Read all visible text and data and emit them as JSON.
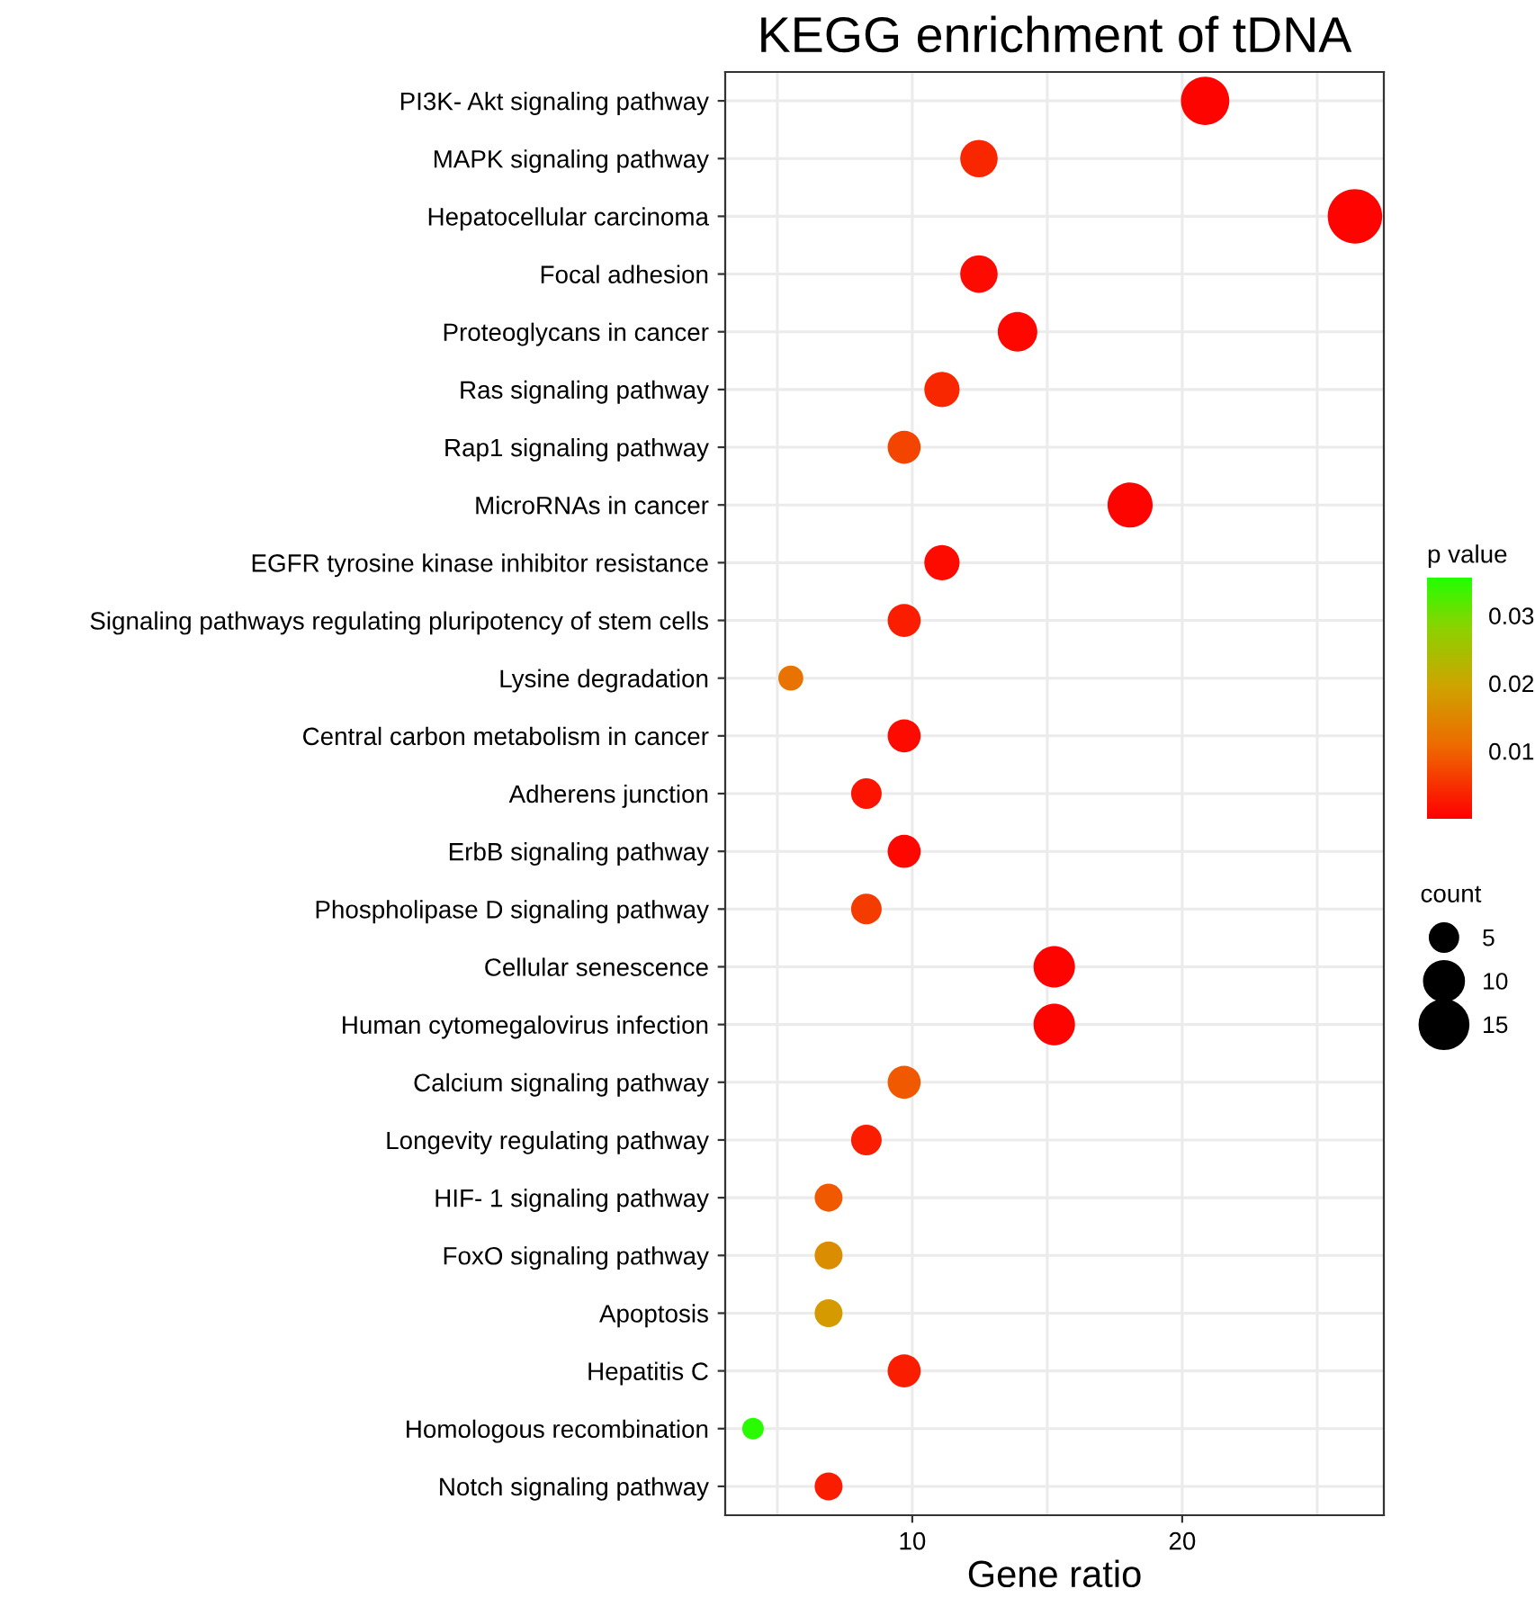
{
  "chart_data": {
    "type": "bubble",
    "title": "KEGG enrichment of tDNA",
    "xlabel": "Gene ratio",
    "clabel": "p value",
    "legend_title": "count",
    "orientation": "horizontal",
    "categories": [
      "PI3K- Akt signaling pathway",
      "MAPK signaling pathway",
      "Hepatocellular carcinoma",
      "Focal adhesion",
      "Proteoglycans in cancer",
      "Ras signaling pathway",
      "Rap1 signaling pathway",
      "MicroRNAs in cancer",
      "EGFR tyrosine kinase inhibitor resistance",
      "Signaling pathways regulating pluripotency of stem cells",
      "Lysine degradation",
      "Central carbon metabolism in cancer",
      "Adherens junction",
      "ErbB signaling pathway",
      "Phospholipase D signaling pathway",
      "Cellular senescence",
      "Human cytomegalovirus infection",
      "Calcium signaling pathway",
      "Longevity regulating pathway",
      "HIF- 1 signaling pathway",
      "FoxO signaling pathway",
      "Apoptosis",
      "Hepatitis C",
      "Homologous recombination",
      "Notch signaling pathway"
    ],
    "values": [
      20.85,
      12.47,
      26.4,
      12.47,
      13.9,
      11.1,
      9.7,
      18.07,
      11.1,
      9.7,
      5.5,
      9.7,
      8.3,
      9.7,
      8.3,
      15.26,
      15.26,
      9.7,
      8.3,
      6.9,
      6.9,
      6.9,
      9.7,
      4.1,
      6.9
    ],
    "sizes": [
      15,
      9,
      19,
      9,
      10,
      8,
      7,
      13,
      8,
      7,
      4,
      7,
      6,
      7,
      6,
      11,
      11,
      7,
      6,
      5,
      5,
      5,
      7,
      3,
      5
    ],
    "cvalues": [
      0.0005,
      0.004,
      0.0003,
      0.001,
      0.0008,
      0.004,
      0.007,
      0.0005,
      0.001,
      0.003,
      0.012,
      0.001,
      0.002,
      0.0008,
      0.006,
      0.0005,
      0.0005,
      0.009,
      0.003,
      0.009,
      0.016,
      0.018,
      0.003,
      0.035,
      0.003
    ],
    "size_legend": [
      5,
      10,
      15
    ],
    "xlim": [
      3.07,
      27.47
    ],
    "xticks": [
      10,
      20
    ],
    "clim": [
      0,
      0.0356
    ],
    "cticks": [
      0.01,
      0.02,
      0.03
    ],
    "grid": true
  }
}
